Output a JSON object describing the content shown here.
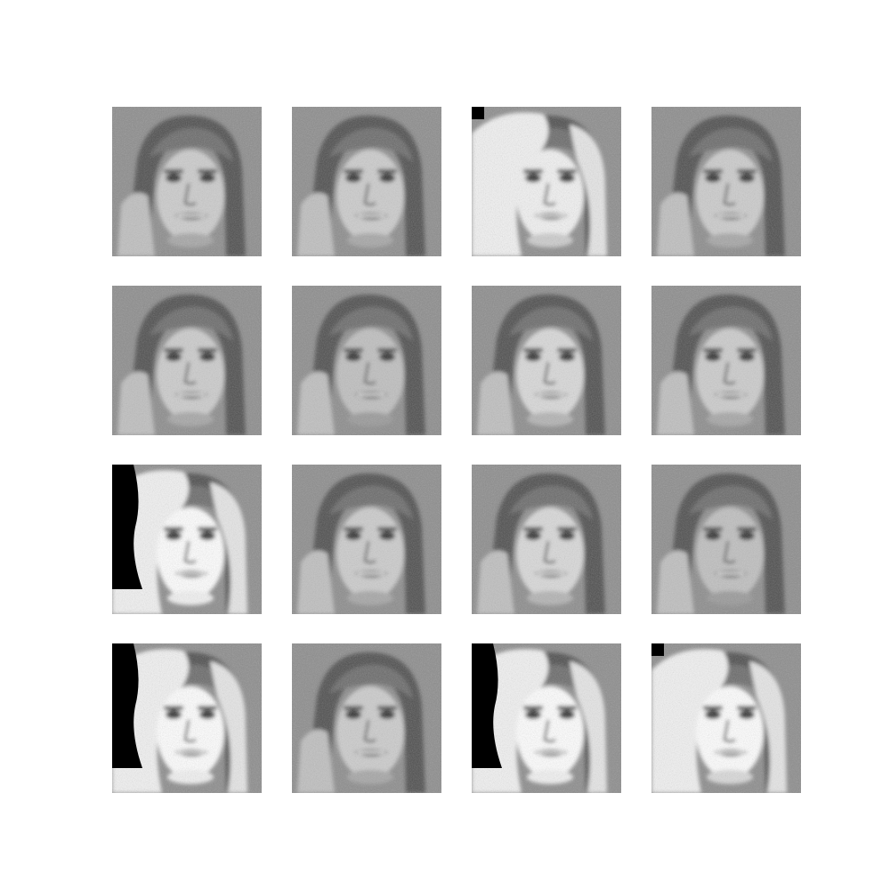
{
  "grid": {
    "rows": 4,
    "cols": 4,
    "tiles": [
      {
        "variant": "standard",
        "brightness": 0.55,
        "artifact": "none"
      },
      {
        "variant": "standard",
        "brightness": 0.55,
        "artifact": "none"
      },
      {
        "variant": "bright-left",
        "brightness": 0.7,
        "artifact": "corner"
      },
      {
        "variant": "standard",
        "brightness": 0.55,
        "artifact": "none"
      },
      {
        "variant": "standard",
        "brightness": 0.55,
        "artifact": "none"
      },
      {
        "variant": "standard",
        "brightness": 0.5,
        "artifact": "none"
      },
      {
        "variant": "standard",
        "brightness": 0.6,
        "artifact": "none"
      },
      {
        "variant": "standard",
        "brightness": 0.55,
        "artifact": "none"
      },
      {
        "variant": "washed-out",
        "brightness": 0.85,
        "artifact": "left-block"
      },
      {
        "variant": "standard",
        "brightness": 0.55,
        "artifact": "none"
      },
      {
        "variant": "standard",
        "brightness": 0.6,
        "artifact": "none"
      },
      {
        "variant": "standard",
        "brightness": 0.5,
        "artifact": "none"
      },
      {
        "variant": "washed-out",
        "brightness": 0.85,
        "artifact": "left-block"
      },
      {
        "variant": "standard",
        "brightness": 0.55,
        "artifact": "none"
      },
      {
        "variant": "washed-out",
        "brightness": 0.85,
        "artifact": "left-block"
      },
      {
        "variant": "bright-left",
        "brightness": 0.75,
        "artifact": "corner"
      }
    ]
  },
  "colors": {
    "background": "#ffffff",
    "tile_gray": "#8c8c8c",
    "dark": "#1a1a1a",
    "light": "#f2f2f2"
  }
}
